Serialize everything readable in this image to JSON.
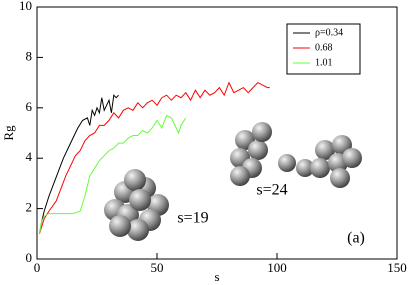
{
  "chart_data": {
    "type": "line",
    "xlabel": "s",
    "ylabel": "Rg",
    "xlim": [
      0,
      150
    ],
    "ylim": [
      0,
      10
    ],
    "xticks": [
      0,
      50,
      100,
      150
    ],
    "yticks": [
      0,
      2,
      4,
      6,
      8,
      10
    ],
    "legend": "upper right",
    "annotations": [
      "s=19",
      "s=24",
      "(a)"
    ],
    "series": [
      {
        "name": "ρ=0.34",
        "color": "#000000",
        "x": [
          1,
          2,
          3,
          5,
          7,
          9,
          11,
          13,
          15,
          17,
          19,
          21,
          22,
          23,
          24,
          25,
          26,
          27,
          28,
          29,
          30,
          31,
          32,
          33,
          34
        ],
        "values": [
          1.0,
          1.5,
          1.9,
          2.5,
          3.0,
          3.5,
          4.0,
          4.4,
          4.8,
          5.2,
          5.5,
          5.6,
          5.3,
          5.9,
          5.7,
          6.0,
          5.8,
          6.4,
          5.9,
          6.1,
          6.3,
          5.8,
          6.5,
          6.4,
          6.5
        ]
      },
      {
        "name": "0.68",
        "color": "#ff0000",
        "x": [
          1,
          3,
          5,
          8,
          10,
          12,
          14,
          16,
          18,
          20,
          22,
          24,
          26,
          28,
          30,
          32,
          34,
          36,
          38,
          40,
          42,
          44,
          46,
          48,
          50,
          52,
          54,
          56,
          58,
          60,
          62,
          64,
          66,
          68,
          70,
          72,
          74,
          76,
          78,
          80,
          82,
          84,
          86,
          88,
          90,
          92,
          94,
          96,
          97
        ],
        "values": [
          1.0,
          1.6,
          1.9,
          2.3,
          2.8,
          3.3,
          3.7,
          4.1,
          4.3,
          4.7,
          4.9,
          5.0,
          5.3,
          5.3,
          5.5,
          5.8,
          5.6,
          5.9,
          6.0,
          5.9,
          6.2,
          6.0,
          6.2,
          6.3,
          6.1,
          6.4,
          6.5,
          6.3,
          6.5,
          6.4,
          6.6,
          6.3,
          6.7,
          6.4,
          6.7,
          6.5,
          6.6,
          6.8,
          6.5,
          7.0,
          6.6,
          6.7,
          6.8,
          6.6,
          6.8,
          7.0,
          6.9,
          6.8,
          6.8
        ]
      },
      {
        "name": "1.01",
        "color": "#66ff33",
        "x": [
          1,
          2,
          3,
          5,
          10,
          15,
          18,
          19,
          20,
          21,
          22,
          24,
          26,
          28,
          30,
          32,
          34,
          36,
          38,
          40,
          42,
          44,
          46,
          48,
          50,
          52,
          54,
          56,
          58,
          59,
          60,
          62
        ],
        "values": [
          1.0,
          1.5,
          1.7,
          1.8,
          1.8,
          1.8,
          1.9,
          2.2,
          2.5,
          2.9,
          3.3,
          3.6,
          3.9,
          4.1,
          4.3,
          4.4,
          4.6,
          4.6,
          4.8,
          4.9,
          4.9,
          5.1,
          5.0,
          5.2,
          5.5,
          5.2,
          5.7,
          5.6,
          5.2,
          5.0,
          5.3,
          5.6
        ]
      }
    ]
  }
}
